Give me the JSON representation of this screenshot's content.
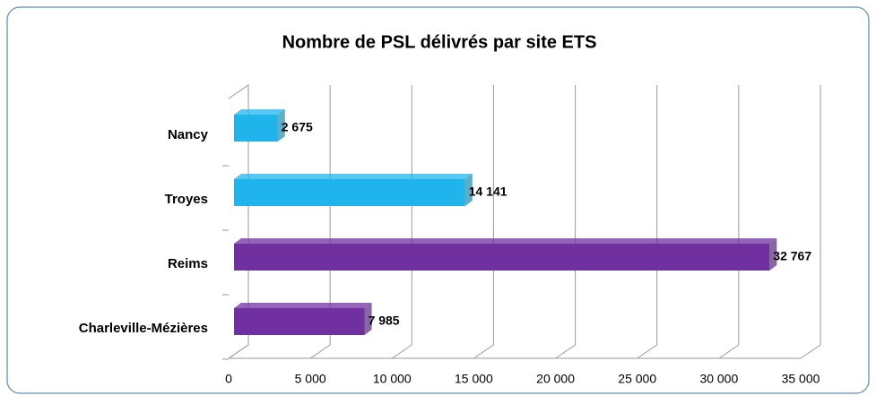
{
  "chart_data": {
    "type": "bar",
    "orientation": "horizontal",
    "title": "Nombre de PSL délivrés par site ETS",
    "categories": [
      "Nancy",
      "Troyes",
      "Reims",
      "Charleville-Mézières"
    ],
    "values": [
      2675,
      14141,
      32767,
      7985
    ],
    "value_labels": [
      "2 675",
      "14 141",
      "32 767",
      "7 985"
    ],
    "colors": [
      "#1fb5ec",
      "#1fb5ec",
      "#7030a0",
      "#7030a0"
    ],
    "xlim": [
      0,
      35000
    ],
    "xticks": [
      0,
      {
        "value": 5000,
        "label": "5 000"
      },
      {
        "value": 10000,
        "label": "10 000"
      },
      {
        "value": 15000,
        "label": "15 000"
      },
      {
        "value": 20000,
        "label": "20 000"
      },
      {
        "value": 25000,
        "label": "25 000"
      },
      {
        "value": 30000,
        "label": "30 000"
      },
      {
        "value": 35000,
        "label": "35 000"
      }
    ],
    "grid": true
  }
}
